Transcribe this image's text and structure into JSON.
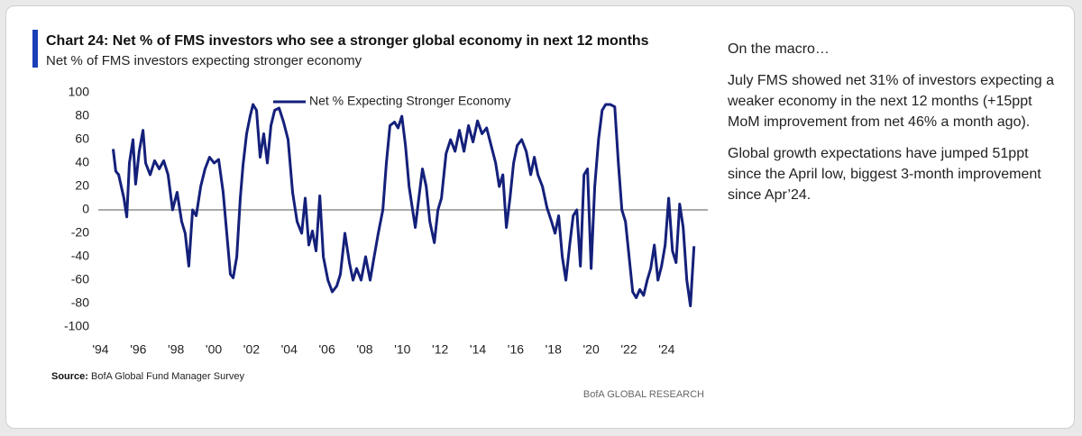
{
  "chart_data": {
    "type": "line",
    "title": "Chart 24: Net % of FMS investors who see a stronger global economy in next 12 months",
    "subtitle": "Net % of FMS investors expecting stronger economy",
    "source_label": "Source:",
    "source": "BofA Global Fund Manager Survey",
    "brand": "BofA GLOBAL RESEARCH",
    "legend": "top",
    "xlim": [
      1993.5,
      2025.8
    ],
    "ylim": [
      -100,
      100
    ],
    "yticks": [
      -100,
      -80,
      -60,
      -40,
      -20,
      0,
      20,
      40,
      60,
      80,
      100
    ],
    "xticks": [
      {
        "value": 1994,
        "label": "'94"
      },
      {
        "value": 1996,
        "label": "'96"
      },
      {
        "value": 1998,
        "label": "'98"
      },
      {
        "value": 2000,
        "label": "'00"
      },
      {
        "value": 2002,
        "label": "'02"
      },
      {
        "value": 2004,
        "label": "'04"
      },
      {
        "value": 2006,
        "label": "'06"
      },
      {
        "value": 2008,
        "label": "'08"
      },
      {
        "value": 2010,
        "label": "'10"
      },
      {
        "value": 2012,
        "label": "'12"
      },
      {
        "value": 2014,
        "label": "'14"
      },
      {
        "value": 2016,
        "label": "'16"
      },
      {
        "value": 2018,
        "label": "'18"
      },
      {
        "value": 2020,
        "label": "'20"
      },
      {
        "value": 2022,
        "label": "'22"
      },
      {
        "value": 2024,
        "label": "'24"
      }
    ],
    "x": [
      1994.67,
      1994.81,
      1994.96,
      1995.1,
      1995.24,
      1995.39,
      1995.53,
      1995.72,
      1995.86,
      1996.05,
      1996.25,
      1996.39,
      1996.63,
      1996.87,
      1997.11,
      1997.35,
      1997.58,
      1997.82,
      1998.06,
      1998.3,
      1998.49,
      1998.68,
      1998.88,
      1999.07,
      1999.31,
      1999.54,
      1999.78,
      2000.02,
      2000.26,
      2000.5,
      2000.69,
      2000.88,
      2001.03,
      2001.22,
      2001.41,
      2001.55,
      2001.74,
      2001.93,
      2002.08,
      2002.27,
      2002.46,
      2002.65,
      2002.84,
      2003.03,
      2003.23,
      2003.46,
      2003.7,
      2003.94,
      2004.18,
      2004.42,
      2004.66,
      2004.85,
      2005.04,
      2005.23,
      2005.42,
      2005.62,
      2005.81,
      2006.05,
      2006.28,
      2006.52,
      2006.71,
      2006.95,
      2007.19,
      2007.38,
      2007.57,
      2007.81,
      2008.05,
      2008.29,
      2008.48,
      2008.72,
      2008.96,
      2009.15,
      2009.34,
      2009.58,
      2009.77,
      2009.97,
      2010.16,
      2010.35,
      2010.54,
      2010.68,
      2010.87,
      2011.06,
      2011.26,
      2011.45,
      2011.69,
      2011.88,
      2012.07,
      2012.31,
      2012.55,
      2012.79,
      2013.02,
      2013.26,
      2013.5,
      2013.74,
      2013.98,
      2014.22,
      2014.46,
      2014.7,
      2014.94,
      2015.13,
      2015.32,
      2015.51,
      2015.7,
      2015.89,
      2016.08,
      2016.32,
      2016.56,
      2016.8,
      2016.99,
      2017.18,
      2017.42,
      2017.66,
      2017.9,
      2018.09,
      2018.28,
      2018.47,
      2018.66,
      2018.86,
      2019.05,
      2019.24,
      2019.43,
      2019.62,
      2019.81,
      2020.0,
      2020.19,
      2020.39,
      2020.58,
      2020.77,
      2021.01,
      2021.25,
      2021.44,
      2021.63,
      2021.82,
      2022.01,
      2022.2,
      2022.39,
      2022.58,
      2022.78,
      2022.97,
      2023.16,
      2023.35,
      2023.54,
      2023.73,
      2023.92,
      2024.11,
      2024.31,
      2024.5,
      2024.69,
      2024.88,
      2025.07,
      2025.26,
      2025.45
    ],
    "series": [
      {
        "name": "Net % Expecting Stronger Economy",
        "color": "#14207a",
        "values": [
          52,
          33,
          30,
          20,
          10,
          -6,
          40,
          60,
          22,
          50,
          68,
          40,
          30,
          42,
          35,
          42,
          30,
          0,
          15,
          -10,
          -20,
          -48,
          0,
          -5,
          20,
          35,
          45,
          40,
          43,
          15,
          -20,
          -55,
          -58,
          -40,
          10,
          38,
          65,
          80,
          90,
          85,
          45,
          65,
          40,
          72,
          85,
          87,
          75,
          60,
          15,
          -10,
          -20,
          10,
          -30,
          -18,
          -35,
          12,
          -40,
          -60,
          -70,
          -65,
          -55,
          -20,
          -45,
          -60,
          -50,
          -60,
          -40,
          -60,
          -42,
          -20,
          0,
          40,
          72,
          75,
          70,
          80,
          55,
          20,
          0,
          -15,
          10,
          35,
          20,
          -10,
          -28,
          0,
          10,
          48,
          60,
          50,
          68,
          50,
          72,
          58,
          76,
          65,
          70,
          55,
          40,
          20,
          30,
          -15,
          10,
          40,
          55,
          60,
          50,
          30,
          45,
          30,
          20,
          2,
          -10,
          -20,
          -5,
          -40,
          -60,
          -30,
          -5,
          0,
          -48,
          30,
          35,
          -50,
          20,
          60,
          85,
          90,
          90,
          88,
          40,
          0,
          -10,
          -40,
          -70,
          -75,
          -68,
          -73,
          -60,
          -50,
          -30,
          -60,
          -48,
          -30,
          10,
          -35,
          -45,
          5,
          -15,
          -60,
          -82,
          -31
        ]
      }
    ]
  },
  "side": {
    "heading": "On the macro…",
    "paragraphs": [
      "July FMS showed net 31% of investors expecting a weaker economy in the next 12 months (+15ppt MoM improvement from net 46% a month ago).",
      "Global growth expectations have jumped 51ppt since the April low, biggest 3-month improvement since Apr’24."
    ]
  }
}
